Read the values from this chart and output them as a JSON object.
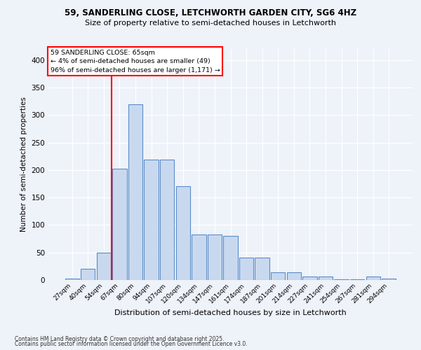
{
  "title_line1": "59, SANDERLING CLOSE, LETCHWORTH GARDEN CITY, SG6 4HZ",
  "title_line2": "Size of property relative to semi-detached houses in Letchworth",
  "xlabel": "Distribution of semi-detached houses by size in Letchworth",
  "ylabel": "Number of semi-detached properties",
  "bins": [
    "27sqm",
    "40sqm",
    "54sqm",
    "67sqm",
    "80sqm",
    "94sqm",
    "107sqm",
    "120sqm",
    "134sqm",
    "147sqm",
    "161sqm",
    "174sqm",
    "187sqm",
    "201sqm",
    "214sqm",
    "227sqm",
    "241sqm",
    "254sqm",
    "267sqm",
    "281sqm",
    "294sqm"
  ],
  "values": [
    3,
    21,
    50,
    202,
    320,
    219,
    219,
    170,
    83,
    83,
    80,
    41,
    41,
    14,
    14,
    6,
    6,
    1,
    1,
    6,
    3
  ],
  "bar_color": "#c8d9ef",
  "bar_edge_color": "#5b8dc8",
  "vline_color": "red",
  "annotation_text": "59 SANDERLING CLOSE: 65sqm\n← 4% of semi-detached houses are smaller (49)\n96% of semi-detached houses are larger (1,171) →",
  "annotation_box_color": "white",
  "annotation_box_edge_color": "red",
  "ylim": [
    0,
    420
  ],
  "yticks": [
    0,
    50,
    100,
    150,
    200,
    250,
    300,
    350,
    400
  ],
  "footer_line1": "Contains HM Land Registry data © Crown copyright and database right 2025.",
  "footer_line2": "Contains public sector information licensed under the Open Government Licence v3.0.",
  "bg_color": "#eef2f9",
  "plot_bg_color": "#eef2f9",
  "grid_color": "white"
}
